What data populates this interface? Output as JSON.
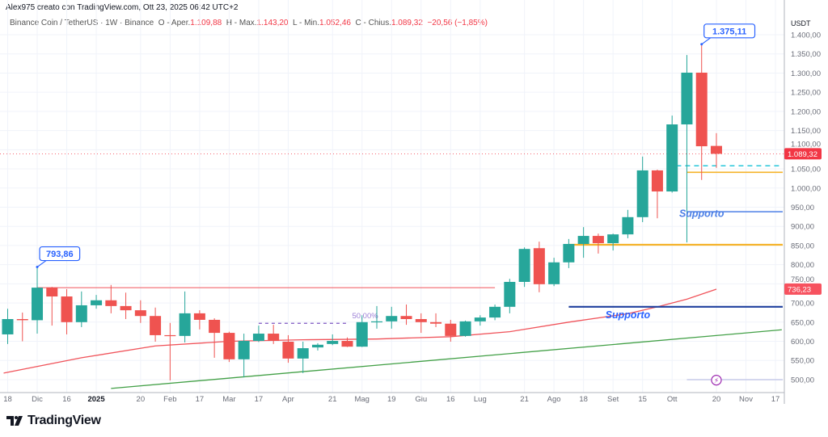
{
  "header": {
    "credit": "Alex975 creato con TradingView.com, Ott 23, 2025 06:42 UTC+2",
    "symbol": "Binance Coin / TetherUS · 1W · Binance",
    "open_label": "O - Aper.",
    "open": "1.109,88",
    "high_label": "H - Max.",
    "high": "1.143,20",
    "low_label": "L - Min.",
    "low": "1.052,46",
    "close_label": "C - Chius.",
    "close": "1.089,32",
    "change": "−20,56 (−1,85%)"
  },
  "branding": {
    "logo_text": "TradingView"
  },
  "colors": {
    "up": "#26a69a",
    "down": "#ef5350",
    "ma": "#f0535a",
    "trend": "#43a047",
    "annotation": "#2962ff"
  },
  "chart_data": {
    "type": "candlestick",
    "title": "",
    "currency": "USDT",
    "interval": "1W",
    "ylim": [
      480,
      1430
    ],
    "y_ticks": [
      "1.400,00",
      "1.350,00",
      "1.300,00",
      "1.250,00",
      "1.200,00",
      "1.150,00",
      "1.100,00",
      "1.050,00",
      "1.000,00",
      "950,00",
      "900,00",
      "850,00",
      "800,00",
      "750,00",
      "700,00",
      "650,00",
      "600,00",
      "550,00",
      "500,00"
    ],
    "y_tick_values": [
      1400,
      1350,
      1300,
      1250,
      1200,
      1150,
      1100,
      1050,
      1000,
      950,
      900,
      850,
      800,
      750,
      700,
      650,
      600,
      550,
      500
    ],
    "x_ticks": [
      {
        "label": "18",
        "date": "2024-11-18"
      },
      {
        "label": "Dic",
        "date": "2024-12-02"
      },
      {
        "label": "16",
        "date": "2024-12-16"
      },
      {
        "label": "2025",
        "date": "2024-12-30",
        "bold": true
      },
      {
        "label": "20",
        "date": "2025-01-20"
      },
      {
        "label": "Feb",
        "date": "2025-02-03"
      },
      {
        "label": "17",
        "date": "2025-02-17"
      },
      {
        "label": "Mar",
        "date": "2025-03-03"
      },
      {
        "label": "17",
        "date": "2025-03-17"
      },
      {
        "label": "Apr",
        "date": "2025-03-31"
      },
      {
        "label": "21",
        "date": "2025-04-21"
      },
      {
        "label": "Mag",
        "date": "2025-05-05"
      },
      {
        "label": "19",
        "date": "2025-05-19"
      },
      {
        "label": "Giu",
        "date": "2025-06-02"
      },
      {
        "label": "16",
        "date": "2025-06-16"
      },
      {
        "label": "Lug",
        "date": "2025-06-30"
      },
      {
        "label": "21",
        "date": "2025-07-21"
      },
      {
        "label": "Ago",
        "date": "2025-08-04"
      },
      {
        "label": "18",
        "date": "2025-08-18"
      },
      {
        "label": "Set",
        "date": "2025-09-01"
      },
      {
        "label": "15",
        "date": "2025-09-15"
      },
      {
        "label": "Ott",
        "date": "2025-09-29"
      },
      {
        "label": "20",
        "date": "2025-10-20"
      },
      {
        "label": "Nov",
        "date": "2025-11-03"
      },
      {
        "label": "17",
        "date": "2025-11-17"
      }
    ],
    "candles": [
      {
        "d": "2024-11-18",
        "o": 618,
        "h": 685,
        "l": 593,
        "c": 658
      },
      {
        "d": "2024-11-25",
        "o": 658,
        "h": 675,
        "l": 600,
        "c": 655
      },
      {
        "d": "2024-12-02",
        "o": 655,
        "h": 793.86,
        "l": 620,
        "c": 740
      },
      {
        "d": "2024-12-09",
        "o": 740,
        "h": 742,
        "l": 641,
        "c": 717
      },
      {
        "d": "2024-12-16",
        "o": 717,
        "h": 736,
        "l": 618,
        "c": 650
      },
      {
        "d": "2024-12-23",
        "o": 650,
        "h": 730,
        "l": 637,
        "c": 694
      },
      {
        "d": "2024-12-30",
        "o": 694,
        "h": 721,
        "l": 685,
        "c": 707
      },
      {
        "d": "2025-01-06",
        "o": 707,
        "h": 747,
        "l": 673,
        "c": 692
      },
      {
        "d": "2025-01-13",
        "o": 692,
        "h": 727,
        "l": 658,
        "c": 681
      },
      {
        "d": "2025-01-20",
        "o": 681,
        "h": 707,
        "l": 648,
        "c": 666
      },
      {
        "d": "2025-01-27",
        "o": 666,
        "h": 688,
        "l": 599,
        "c": 616
      },
      {
        "d": "2025-02-03",
        "o": 616,
        "h": 648,
        "l": 498,
        "c": 614
      },
      {
        "d": "2025-02-10",
        "o": 614,
        "h": 730,
        "l": 597,
        "c": 673
      },
      {
        "d": "2025-02-17",
        "o": 673,
        "h": 681,
        "l": 631,
        "c": 656
      },
      {
        "d": "2025-02-24",
        "o": 656,
        "h": 660,
        "l": 557,
        "c": 622
      },
      {
        "d": "2025-03-03",
        "o": 622,
        "h": 625,
        "l": 546,
        "c": 553
      },
      {
        "d": "2025-03-10",
        "o": 553,
        "h": 620,
        "l": 506,
        "c": 601
      },
      {
        "d": "2025-03-17",
        "o": 601,
        "h": 641,
        "l": 598,
        "c": 620
      },
      {
        "d": "2025-03-24",
        "o": 620,
        "h": 643,
        "l": 593,
        "c": 601
      },
      {
        "d": "2025-03-31",
        "o": 599,
        "h": 616,
        "l": 544,
        "c": 555
      },
      {
        "d": "2025-04-07",
        "o": 555,
        "h": 599,
        "l": 517,
        "c": 582
      },
      {
        "d": "2025-04-14",
        "o": 584,
        "h": 595,
        "l": 576,
        "c": 591
      },
      {
        "d": "2025-04-21",
        "o": 593,
        "h": 618,
        "l": 590,
        "c": 601
      },
      {
        "d": "2025-04-28",
        "o": 601,
        "h": 610,
        "l": 585,
        "c": 586
      },
      {
        "d": "2025-05-05",
        "o": 586,
        "h": 668,
        "l": 585,
        "c": 650
      },
      {
        "d": "2025-05-12",
        "o": 650,
        "h": 692,
        "l": 633,
        "c": 652
      },
      {
        "d": "2025-05-19",
        "o": 652,
        "h": 690,
        "l": 633,
        "c": 666
      },
      {
        "d": "2025-05-26",
        "o": 666,
        "h": 696,
        "l": 643,
        "c": 658
      },
      {
        "d": "2025-06-02",
        "o": 658,
        "h": 673,
        "l": 622,
        "c": 650
      },
      {
        "d": "2025-06-09",
        "o": 650,
        "h": 673,
        "l": 637,
        "c": 646
      },
      {
        "d": "2025-06-16",
        "o": 646,
        "h": 656,
        "l": 599,
        "c": 614
      },
      {
        "d": "2025-06-23",
        "o": 614,
        "h": 654,
        "l": 612,
        "c": 652
      },
      {
        "d": "2025-06-30",
        "o": 652,
        "h": 668,
        "l": 641,
        "c": 662
      },
      {
        "d": "2025-07-07",
        "o": 662,
        "h": 696,
        "l": 655,
        "c": 690
      },
      {
        "d": "2025-07-14",
        "o": 690,
        "h": 763,
        "l": 673,
        "c": 755
      },
      {
        "d": "2025-07-21",
        "o": 755,
        "h": 845,
        "l": 742,
        "c": 841
      },
      {
        "d": "2025-07-28",
        "o": 843,
        "h": 860,
        "l": 728,
        "c": 749
      },
      {
        "d": "2025-08-04",
        "o": 749,
        "h": 818,
        "l": 744,
        "c": 806
      },
      {
        "d": "2025-08-11",
        "o": 806,
        "h": 867,
        "l": 791,
        "c": 854
      },
      {
        "d": "2025-08-18",
        "o": 854,
        "h": 898,
        "l": 818,
        "c": 875
      },
      {
        "d": "2025-08-25",
        "o": 875,
        "h": 881,
        "l": 829,
        "c": 856
      },
      {
        "d": "2025-09-01",
        "o": 856,
        "h": 881,
        "l": 837,
        "c": 879
      },
      {
        "d": "2025-09-08",
        "o": 879,
        "h": 943,
        "l": 869,
        "c": 924
      },
      {
        "d": "2025-09-15",
        "o": 924,
        "h": 1082,
        "l": 911,
        "c": 1046
      },
      {
        "d": "2025-09-22",
        "o": 1046,
        "h": 1048,
        "l": 921,
        "c": 991
      },
      {
        "d": "2025-09-29",
        "o": 991,
        "h": 1189,
        "l": 988,
        "c": 1166
      },
      {
        "d": "2025-10-06",
        "o": 1166,
        "h": 1347,
        "l": 858,
        "c": 1301
      },
      {
        "d": "2025-10-13",
        "o": 1301,
        "h": 1375.11,
        "l": 1021,
        "c": 1109
      },
      {
        "d": "2025-10-20",
        "o": 1109.88,
        "h": 1143.2,
        "l": 1052.46,
        "c": 1089.32
      }
    ],
    "moving_average": [
      [
        "2024-11-18",
        517
      ],
      [
        "2024-12-23",
        557
      ],
      [
        "2025-01-27",
        588
      ],
      [
        "2025-03-03",
        600
      ],
      [
        "2025-04-07",
        604
      ],
      [
        "2025-05-12",
        606
      ],
      [
        "2025-06-16",
        612
      ],
      [
        "2025-07-14",
        625
      ],
      [
        "2025-08-11",
        650
      ],
      [
        "2025-09-08",
        672
      ],
      [
        "2025-09-22",
        690
      ],
      [
        "2025-10-06",
        710
      ],
      [
        "2025-10-20",
        736
      ]
    ],
    "trendline": [
      [
        "2025-01-06",
        477
      ],
      [
        "2025-11-20",
        630
      ]
    ],
    "levels": [
      {
        "name": "red-resistance",
        "value": 740,
        "from": "2024-12-02",
        "to": "2025-07-07",
        "color": "#f0535a",
        "width": 1
      },
      {
        "name": "fib-50",
        "value": 647,
        "from": "2025-03-17",
        "to": "2025-04-28",
        "color": "#7e57c2",
        "width": 1.3,
        "dash": "4,4"
      },
      {
        "name": "support-dark-blue",
        "value": 690,
        "from": "2025-08-11",
        "to": "end",
        "color": "#1e3f9e",
        "width": 2.2
      },
      {
        "name": "yellow-support-low",
        "value": 852,
        "from": "2025-08-11",
        "to": "end",
        "color": "#f5b32a",
        "width": 2.2
      },
      {
        "name": "support-light-blue",
        "value": 938,
        "from": "2025-10-06",
        "to": "end",
        "color": "#4c7fe6",
        "width": 1.5
      },
      {
        "name": "yellow-support-high",
        "value": 1041,
        "from": "2025-10-06",
        "to": "end",
        "color": "#f5b32a",
        "width": 1.6
      },
      {
        "name": "cyan-dashed",
        "value": 1058,
        "from": "2025-10-01",
        "to": "end",
        "color": "#26c6da",
        "width": 1.6,
        "dash": "6,5"
      },
      {
        "name": "grey-500",
        "value": 500,
        "from": "2025-10-06",
        "to": "end",
        "color": "#c5cae9",
        "width": 1.5
      }
    ],
    "fib_label": "50,00%",
    "support_labels": [
      {
        "text": "Supporto",
        "value": 925,
        "date": "2025-10-13",
        "color": "#4c7fe6"
      },
      {
        "text": "Supporto",
        "value": 660,
        "date": "2025-09-08",
        "color": "#2962ff"
      }
    ],
    "callouts": [
      {
        "text": "793,86",
        "value": 793.86,
        "date": "2024-12-02"
      },
      {
        "text": "1.375,11",
        "value": 1375.11,
        "date": "2025-10-13"
      }
    ],
    "price_labels": [
      {
        "text": "1.089,32",
        "value": 1089.32,
        "color": "#f23645"
      },
      {
        "text": "736,23",
        "value": 736.23,
        "color": "#f7525f"
      }
    ],
    "last_price": 1089.32,
    "event_icon": "lightning-icon",
    "grid": true
  }
}
